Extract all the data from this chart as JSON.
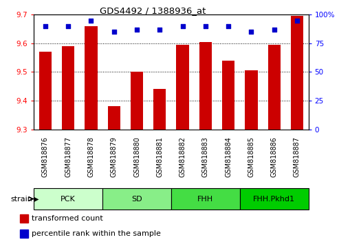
{
  "title": "GDS4492 / 1388936_at",
  "samples": [
    "GSM818876",
    "GSM818877",
    "GSM818878",
    "GSM818879",
    "GSM818880",
    "GSM818881",
    "GSM818882",
    "GSM818883",
    "GSM818884",
    "GSM818885",
    "GSM818886",
    "GSM818887"
  ],
  "bar_values": [
    9.57,
    9.59,
    9.66,
    9.38,
    9.5,
    9.44,
    9.595,
    9.605,
    9.54,
    9.505,
    9.595,
    9.695
  ],
  "percentile_values": [
    90,
    90,
    95,
    85,
    87,
    87,
    90,
    90,
    90,
    85,
    87,
    95
  ],
  "bar_color": "#cc0000",
  "percentile_color": "#0000cc",
  "ylim_left": [
    9.3,
    9.7
  ],
  "ylim_right": [
    0,
    100
  ],
  "yticks_left": [
    9.3,
    9.4,
    9.5,
    9.6,
    9.7
  ],
  "yticks_right": [
    0,
    25,
    50,
    75,
    100
  ],
  "groups": [
    {
      "label": "PCK",
      "start": 0,
      "end": 3,
      "color": "#ccffcc"
    },
    {
      "label": "SD",
      "start": 3,
      "end": 6,
      "color": "#88ee88"
    },
    {
      "label": "FHH",
      "start": 6,
      "end": 9,
      "color": "#44dd44"
    },
    {
      "label": "FHH.Pkhd1",
      "start": 9,
      "end": 12,
      "color": "#00cc00"
    }
  ],
  "strain_label": "strain",
  "legend_items": [
    {
      "label": "transformed count",
      "color": "#cc0000"
    },
    {
      "label": "percentile rank within the sample",
      "color": "#0000cc"
    }
  ],
  "bar_width": 0.55,
  "xlabel_bg": "#d0d0d0",
  "plot_bg": "#ffffff",
  "tick_label_fontsize": 7,
  "group_label_fontsize": 8,
  "legend_fontsize": 8
}
